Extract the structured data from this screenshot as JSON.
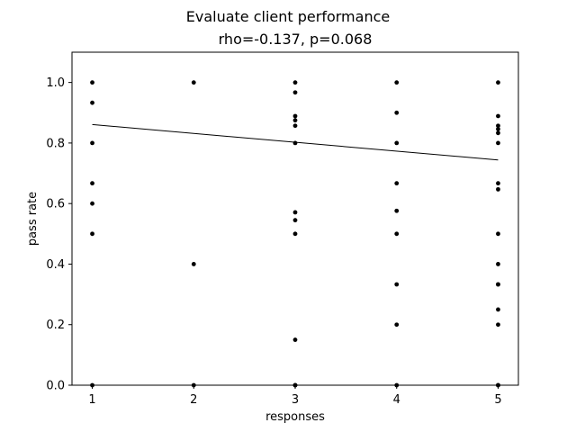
{
  "chart_data": {
    "type": "scatter",
    "title": "Evaluate client performance",
    "subtitle": "rho=-0.137, p=0.068",
    "xlabel": "responses",
    "ylabel": "pass rate",
    "xlim": [
      0.8,
      5.2
    ],
    "ylim": [
      0.0,
      1.1
    ],
    "x_ticks": [
      1,
      2,
      3,
      4,
      5
    ],
    "y_ticks": [
      0.0,
      0.2,
      0.4,
      0.6,
      0.8,
      1.0
    ],
    "x_tick_labels": [
      "1",
      "2",
      "3",
      "4",
      "5"
    ],
    "y_tick_labels": [
      "0.0",
      "0.2",
      "0.4",
      "0.6",
      "0.8",
      "1.0"
    ],
    "grid": false,
    "marker_color": "#000000",
    "series": [
      {
        "x": [
          1,
          1,
          1,
          1,
          1,
          1,
          1,
          2,
          2,
          2,
          3,
          3,
          3,
          3,
          3,
          3,
          3,
          3,
          3,
          3,
          3,
          3,
          4,
          4,
          4,
          4,
          4,
          4,
          4,
          4,
          4,
          5,
          5,
          5,
          5,
          5,
          5,
          5,
          5,
          5,
          5,
          5,
          5,
          5,
          5,
          5,
          5
        ],
        "y": [
          1.0,
          0.933,
          0.8,
          0.667,
          0.6,
          0.5,
          0.0,
          1.0,
          0.4,
          0.0,
          1.0,
          0.967,
          0.889,
          0.875,
          0.857,
          0.8,
          0.571,
          0.545,
          0.5,
          0.15,
          0.0,
          0.0,
          1.0,
          0.9,
          0.8,
          0.667,
          0.576,
          0.5,
          0.333,
          0.2,
          0.0,
          1.0,
          0.889,
          0.857,
          0.846,
          0.833,
          0.8,
          0.667,
          0.647,
          0.5,
          0.4,
          0.333,
          0.25,
          0.2,
          0.0,
          0.0,
          0.333
        ]
      }
    ],
    "trend_line": {
      "x": [
        1,
        5
      ],
      "y": [
        0.861,
        0.744
      ]
    }
  }
}
